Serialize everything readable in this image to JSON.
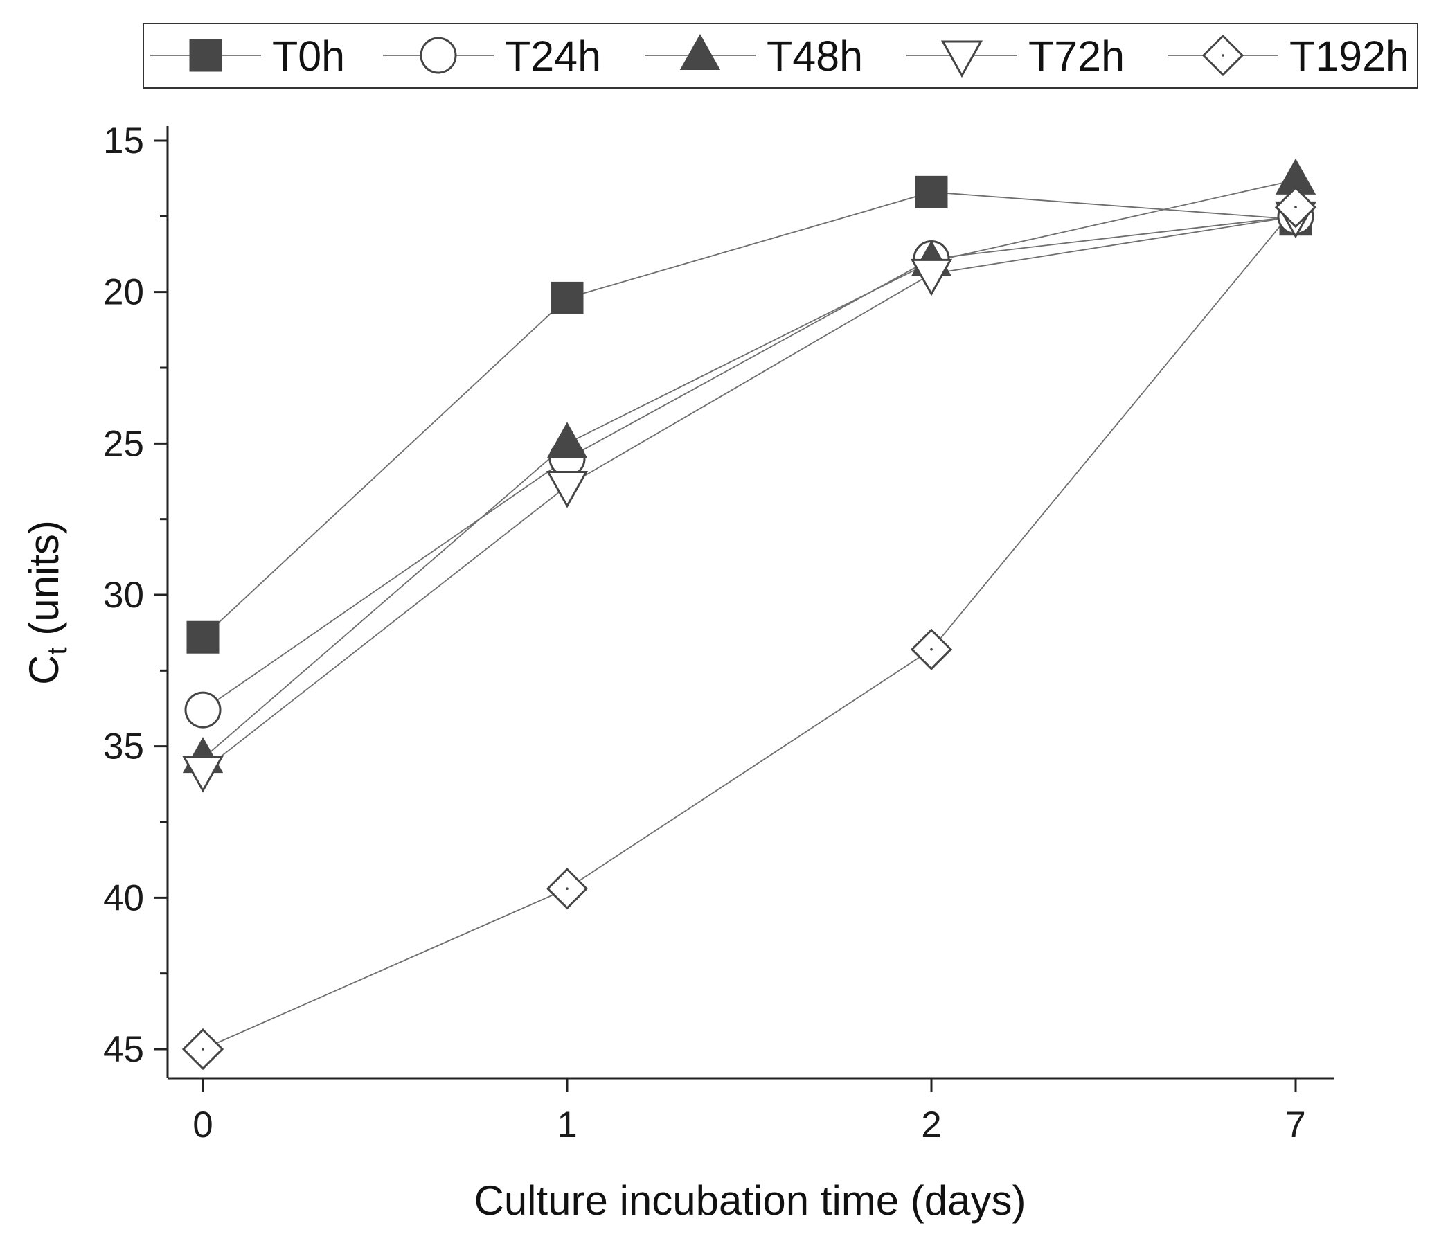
{
  "chart_data": {
    "type": "line",
    "title": "",
    "xlabel": "Culture incubation time (days)",
    "ylabel_main": "C",
    "ylabel_sub": "t",
    "ylabel_rest": " (units)",
    "categories": [
      "0",
      "1",
      "2",
      "7"
    ],
    "yticks": [
      "15",
      "20",
      "25",
      "30",
      "35",
      "40",
      "45"
    ],
    "ylim": [
      15,
      46
    ],
    "y_inverted": true,
    "grid": false,
    "legend_position": "top",
    "series": [
      {
        "name": "T0h",
        "marker": "square-filled",
        "values": [
          31.4,
          20.2,
          16.7,
          17.6
        ]
      },
      {
        "name": "T24h",
        "marker": "circle-open",
        "values": [
          33.8,
          25.5,
          18.9,
          17.5
        ]
      },
      {
        "name": "T48h",
        "marker": "triangle-filled",
        "values": [
          35.4,
          25.0,
          19.0,
          16.3
        ]
      },
      {
        "name": "T72h",
        "marker": "triangle-down-open",
        "values": [
          35.8,
          26.4,
          19.4,
          17.5
        ]
      },
      {
        "name": "T192h",
        "marker": "diamond-open",
        "values": [
          45.0,
          39.7,
          31.8,
          17.2
        ]
      }
    ],
    "colors": {
      "filled": "#474747",
      "stroke": "#454545",
      "line": "#6e6e6e",
      "axis": "#222222"
    }
  }
}
